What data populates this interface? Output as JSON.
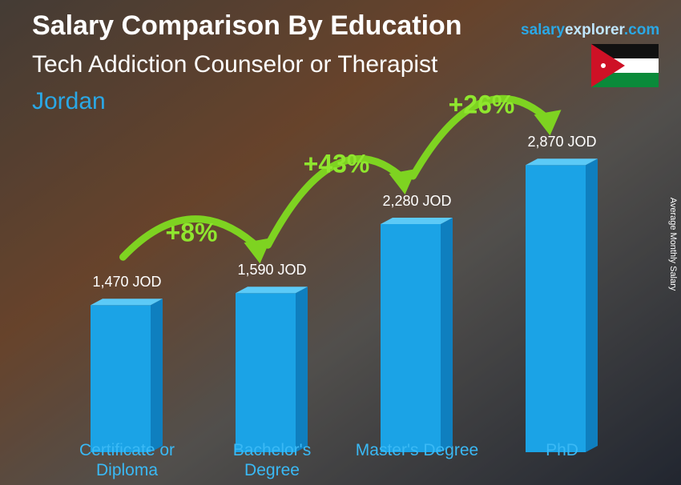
{
  "chart_data": {
    "type": "bar",
    "title": "Salary Comparison By Education",
    "subtitle": "Tech Addiction Counselor or Therapist",
    "country": "Jordan",
    "brand": {
      "part1": "salary",
      "part2": "explorer",
      "part3": ".com"
    },
    "y_label": "Average Monthly Salary",
    "categories": [
      "Certificate or Diploma",
      "Bachelor's Degree",
      "Master's Degree",
      "PhD"
    ],
    "values": [
      1470,
      1590,
      2280,
      2870
    ],
    "value_labels": [
      "1,470 JOD",
      "1,590 JOD",
      "2,280 JOD",
      "2,870 JOD"
    ],
    "color": "#1ba3e6",
    "changes": [
      "+8%",
      "+43%",
      "+26%"
    ]
  }
}
